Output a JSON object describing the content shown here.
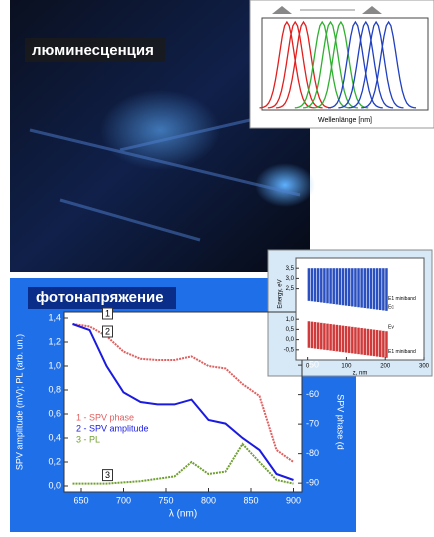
{
  "photo": {
    "label": "люминесценция"
  },
  "panel": {
    "title": "фотонапряжение"
  },
  "chart_data": [
    {
      "type": "peaks",
      "xlabel": "Wellenlänge [nm]",
      "xlim": [
        500,
        900
      ],
      "width": 22,
      "series": [
        {
          "color": "#e02020",
          "values": [
            560,
            580,
            600
          ]
        },
        {
          "color": "#30b030",
          "values": [
            645,
            665,
            690
          ]
        },
        {
          "color": "#2040c0",
          "values": [
            725,
            750,
            775,
            805
          ]
        }
      ]
    },
    {
      "type": "line",
      "xlabel": "λ (nm)",
      "ylabel": "SPV amplitude (mV); PL (arb. un.)",
      "y2label": "SPV phase (d",
      "x": [
        640,
        660,
        680,
        700,
        720,
        740,
        760,
        780,
        800,
        820,
        840,
        860,
        880,
        900
      ],
      "xlim": [
        630,
        910
      ],
      "xticks": [
        650,
        700,
        750,
        800,
        850,
        900
      ],
      "ylim": [
        -0.05,
        1.45
      ],
      "yticks": [
        {
          "value": 0,
          "label": "0,0"
        },
        {
          "value": 0.2,
          "label": "0,2"
        },
        {
          "value": 0.4,
          "label": "0,4"
        },
        {
          "value": 0.6,
          "label": "0,6"
        },
        {
          "value": 0.8,
          "label": "0,8"
        },
        {
          "value": 1.0,
          "label": "1,0"
        },
        {
          "value": 1.2,
          "label": "1,2"
        },
        {
          "value": 1.4,
          "label": "1,4"
        }
      ],
      "y2lim": [
        -93,
        -32
      ],
      "y2ticks": [
        -50,
        -60,
        -70,
        -80,
        -90
      ],
      "series": [
        {
          "name": "1 - SPV phase",
          "tag": "1",
          "color": "#e06060",
          "values": [
            1.35,
            1.33,
            1.25,
            1.12,
            1.06,
            1.05,
            1.05,
            1.08,
            1.0,
            0.98,
            0.85,
            0.75,
            0.3,
            0.2
          ]
        },
        {
          "name": "2 - SPV amplitude",
          "tag": "2",
          "color": "#1a1ae0",
          "values": [
            1.35,
            1.3,
            1.0,
            0.78,
            0.7,
            0.68,
            0.68,
            0.72,
            0.55,
            0.52,
            0.4,
            0.3,
            0.1,
            0.05
          ]
        },
        {
          "name": "3 - PL",
          "tag": "3",
          "color": "#70a030",
          "values": [
            0.02,
            0.02,
            0.02,
            0.03,
            0.04,
            0.06,
            0.08,
            0.2,
            0.1,
            0.12,
            0.35,
            0.2,
            0.05,
            0.02
          ]
        }
      ]
    },
    {
      "type": "bands",
      "ylabel": "Energy, eV",
      "xlabel": "z, nm",
      "xlim": [
        -30,
        300
      ],
      "xticks": [
        0,
        100,
        200,
        300
      ],
      "ylim": [
        -1,
        4
      ],
      "yticks": [
        {
          "value": 3.5,
          "label": "3,5"
        },
        {
          "value": 3.0,
          "label": "3,0"
        },
        {
          "value": 2.5,
          "label": "2,5"
        },
        {
          "value": 1.0,
          "label": "1,0"
        },
        {
          "value": 0.5,
          "label": "0,5"
        },
        {
          "value": 0,
          "label": "0,0"
        },
        {
          "value": -0.5,
          "label": "-0,5"
        }
      ],
      "labels": [
        "E1 miniband",
        "Ec",
        "Ev",
        "E1 miniband"
      ]
    }
  ]
}
